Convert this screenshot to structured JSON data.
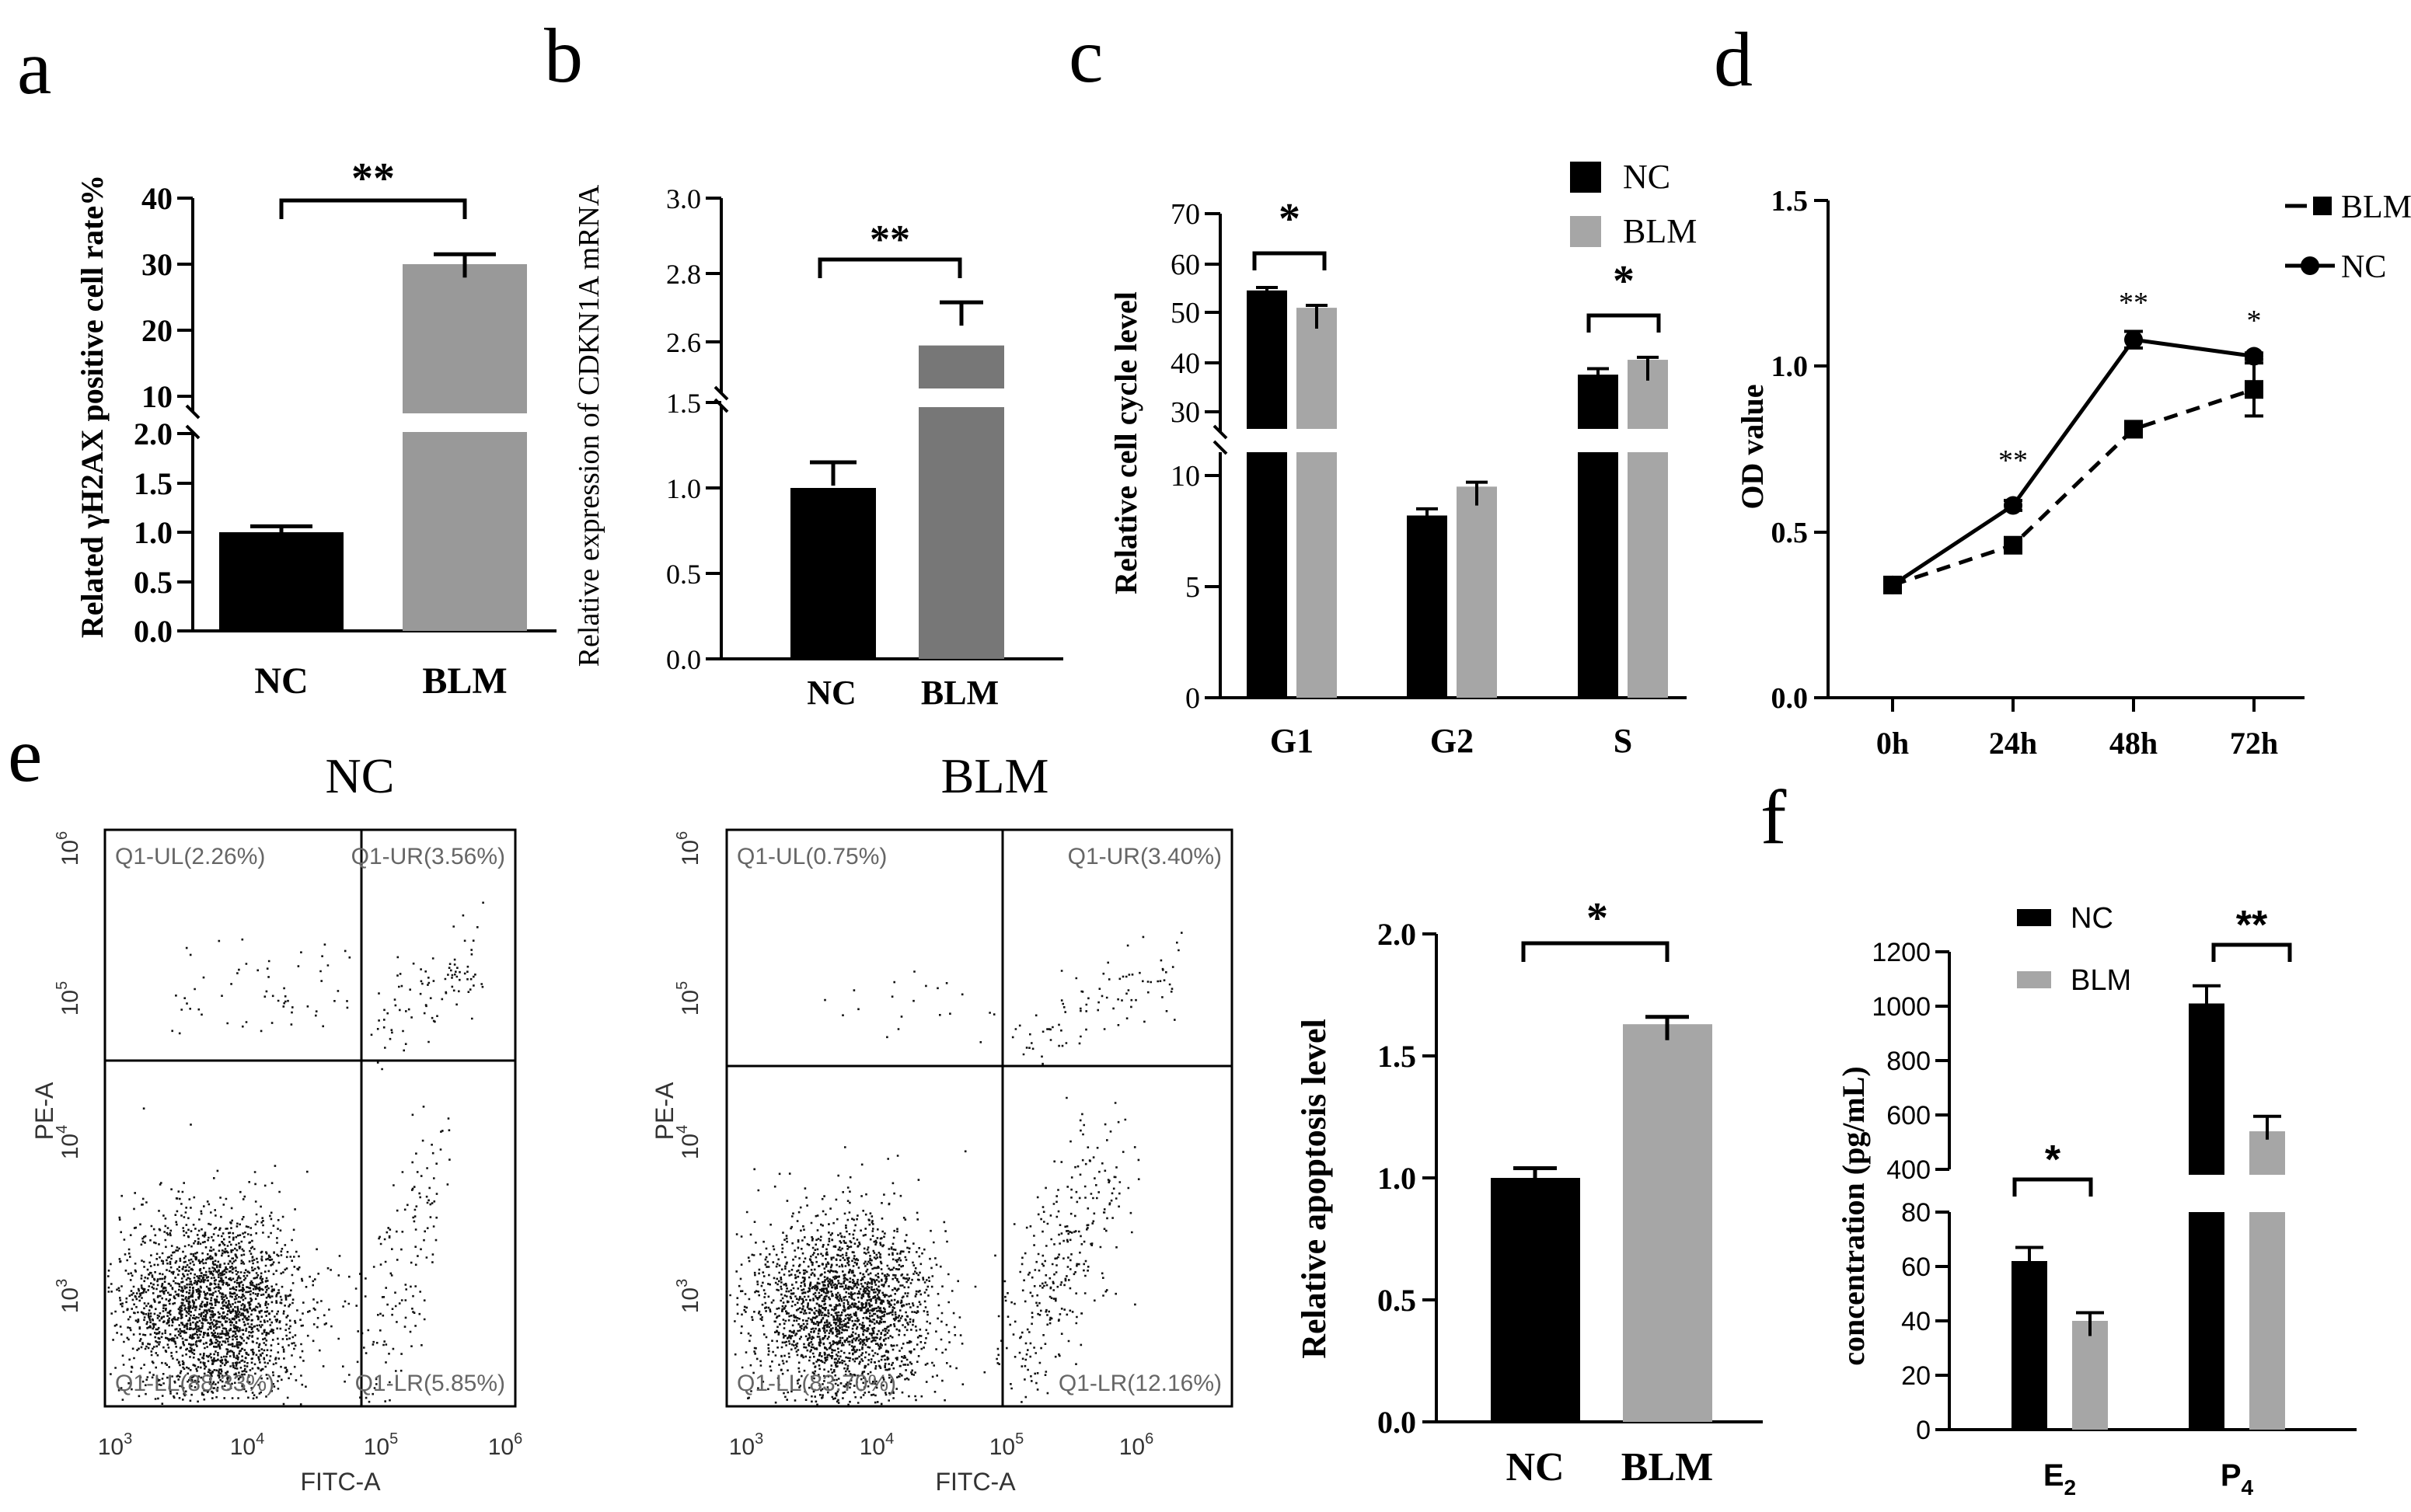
{
  "panel_labels": {
    "a": "a",
    "b": "b",
    "c": "c",
    "d": "d",
    "e": "e",
    "f": "f"
  },
  "chart_data": [
    {
      "id": "a",
      "type": "bar",
      "ylabel": "Related γH2AX positive cell rate%",
      "categories": [
        "NC",
        "BLM"
      ],
      "values": [
        1.0,
        30.0
      ],
      "errors": [
        0.06,
        1.5
      ],
      "colors": [
        "#000000",
        "#999999"
      ],
      "ylim_lower": [
        0,
        2.0
      ],
      "yticks_lower": [
        "0.0",
        "0.5",
        "1.0",
        "1.5",
        "2.0"
      ],
      "ylim_upper": [
        10,
        40
      ],
      "yticks_upper": [
        "10",
        "20",
        "30",
        "40"
      ],
      "significance": "**"
    },
    {
      "id": "b",
      "type": "bar",
      "ylabel": "Relative expression of CDKN1A mRNA",
      "categories": [
        "NC",
        "BLM"
      ],
      "values": [
        1.0,
        2.59
      ],
      "errors": [
        0.15,
        0.12
      ],
      "colors": [
        "#000000",
        "#777777"
      ],
      "ylim_lower": [
        0,
        1.5
      ],
      "yticks_lower": [
        "0.0",
        "0.5",
        "1.0",
        "1.5"
      ],
      "ylim_upper": [
        2.55,
        3.0
      ],
      "yticks_upper": [
        "2.6",
        "2.8",
        "3.0"
      ],
      "significance": "**"
    },
    {
      "id": "c",
      "type": "bar",
      "ylabel": "Relative cell cycle level",
      "categories": [
        "G1",
        "G2",
        "S"
      ],
      "series": [
        {
          "name": "NC",
          "values": [
            54.5,
            8.2,
            37.5
          ],
          "errors": [
            0.6,
            0.3,
            1.2
          ],
          "color": "#000000"
        },
        {
          "name": "BLM",
          "values": [
            51.0,
            9.5,
            40.5
          ],
          "errors": [
            0.5,
            0.2,
            0.5
          ],
          "color": "#a6a6a6"
        }
      ],
      "ylim_lower": [
        0,
        10
      ],
      "yticks_lower": [
        "0",
        "5",
        "10"
      ],
      "ylim_upper": [
        25,
        70
      ],
      "yticks_upper": [
        "30",
        "40",
        "50",
        "60",
        "70"
      ],
      "significance": [
        {
          "category": "G1",
          "label": "*"
        },
        {
          "category": "S",
          "label": "*"
        }
      ],
      "legend": [
        "NC",
        "BLM"
      ]
    },
    {
      "id": "d",
      "type": "line",
      "ylabel": "OD value",
      "x": [
        "0h",
        "24h",
        "48h",
        "72h"
      ],
      "series": [
        {
          "name": "BLM",
          "values": [
            0.34,
            0.46,
            0.81,
            0.93
          ],
          "errors": [
            0.01,
            0.015,
            0.02,
            0.08
          ],
          "style": "dashed",
          "marker": "square"
        },
        {
          "name": "NC",
          "values": [
            0.34,
            0.58,
            1.08,
            1.03
          ],
          "errors": [
            0.01,
            0.015,
            0.025,
            0.01
          ],
          "style": "solid",
          "marker": "circle"
        }
      ],
      "ylim": [
        0,
        1.5
      ],
      "yticks": [
        "0.0",
        "0.5",
        "1.0",
        "1.5"
      ],
      "annotations": [
        "",
        "**",
        "**",
        "*"
      ],
      "legend": [
        "BLM",
        "NC"
      ]
    },
    {
      "id": "e-nc",
      "type": "scatter",
      "title": "NC",
      "xlabel": "FITC-A",
      "ylabel": "PE-A",
      "xticks": [
        "10",
        "10",
        "10",
        "10"
      ],
      "xtick_exp": [
        "3",
        "4",
        "5",
        "6"
      ],
      "yticks": [
        "10",
        "10",
        "10",
        "10"
      ],
      "ytick_exp": [
        "3",
        "4",
        "5",
        "6"
      ],
      "quadrants": {
        "UL": "Q1-UL(2.26%)",
        "UR": "Q1-UR(3.56%)",
        "LL": "Q1-LL(88.33%)",
        "LR": "Q1-LR(5.85%)"
      },
      "quadrant_values": {
        "UL": 2.26,
        "UR": 3.56,
        "LL": 88.33,
        "LR": 5.85
      }
    },
    {
      "id": "e-blm",
      "type": "scatter",
      "title": "BLM",
      "xlabel": "FITC-A",
      "ylabel": "PE-A",
      "xticks": [
        "10",
        "10",
        "10",
        "10"
      ],
      "xtick_exp": [
        "3",
        "4",
        "5",
        "6"
      ],
      "yticks": [
        "10",
        "10",
        "10",
        "10"
      ],
      "ytick_exp": [
        "3",
        "4",
        "5",
        "6"
      ],
      "quadrants": {
        "UL": "Q1-UL(0.75%)",
        "UR": "Q1-UR(3.40%)",
        "LL": "Q1-LL(83.70%)",
        "LR": "Q1-LR(12.16%)"
      },
      "quadrant_values": {
        "UL": 0.75,
        "UR": 3.4,
        "LL": 83.7,
        "LR": 12.16
      }
    },
    {
      "id": "e-bar",
      "type": "bar",
      "ylabel": "Relative apoptosis level",
      "categories": [
        "NC",
        "BLM"
      ],
      "values": [
        1.0,
        1.63
      ],
      "errors": [
        0.04,
        0.03
      ],
      "colors": [
        "#000000",
        "#a6a6a6"
      ],
      "ylim": [
        0,
        2.0
      ],
      "yticks": [
        "0.0",
        "0.5",
        "1.0",
        "1.5",
        "2.0"
      ],
      "significance": "*"
    },
    {
      "id": "f",
      "type": "bar",
      "ylabel": "concentration (pg/mL)",
      "categories": [
        "E",
        "P"
      ],
      "category_subscripts": [
        "2",
        "4"
      ],
      "series": [
        {
          "name": "NC",
          "values": [
            62,
            1010
          ],
          "errors": [
            5,
            65
          ],
          "color": "#000000"
        },
        {
          "name": "BLM",
          "values": [
            40,
            540
          ],
          "errors": [
            3,
            55
          ],
          "color": "#a6a6a6"
        }
      ],
      "ylim_lower": [
        0,
        80
      ],
      "yticks_lower": [
        "0",
        "20",
        "40",
        "60",
        "80"
      ],
      "ylim_upper": [
        400,
        1200
      ],
      "yticks_upper": [
        "400",
        "600",
        "800",
        "1000",
        "1200"
      ],
      "significance": [
        {
          "category": "E",
          "label": "*"
        },
        {
          "category": "P",
          "label": "**"
        }
      ],
      "legend": [
        "NC",
        "BLM"
      ]
    }
  ]
}
